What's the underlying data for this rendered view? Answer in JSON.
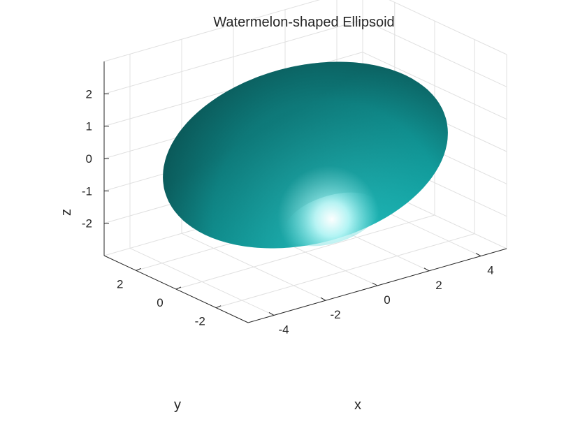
{
  "colors": {
    "surface_base": "#12a3a3",
    "surface_shadow": "#0a3c3c",
    "highlight": "#eaffff",
    "grid": "#e0e0e0",
    "axis": "#262626"
  },
  "chart_data": {
    "type": "surface",
    "title": "Watermelon-shaped Ellipsoid",
    "xlabel": "x",
    "ylabel": "y",
    "zlabel": "z",
    "xlim": [
      -5,
      5
    ],
    "ylim": [
      -3.6,
      3.6
    ],
    "zlim": [
      -3,
      3
    ],
    "xticks": [
      -4,
      -2,
      0,
      2,
      4
    ],
    "yticks": [
      -2,
      0,
      2
    ],
    "zticks": [
      -2,
      -1,
      0,
      1,
      2
    ],
    "surface": {
      "shape": "ellipsoid",
      "center": [
        0,
        0,
        0
      ],
      "semi_axes": {
        "x": 5,
        "y": 3,
        "z": 2.5
      }
    },
    "grid": true,
    "shading": "interp with lighting"
  }
}
